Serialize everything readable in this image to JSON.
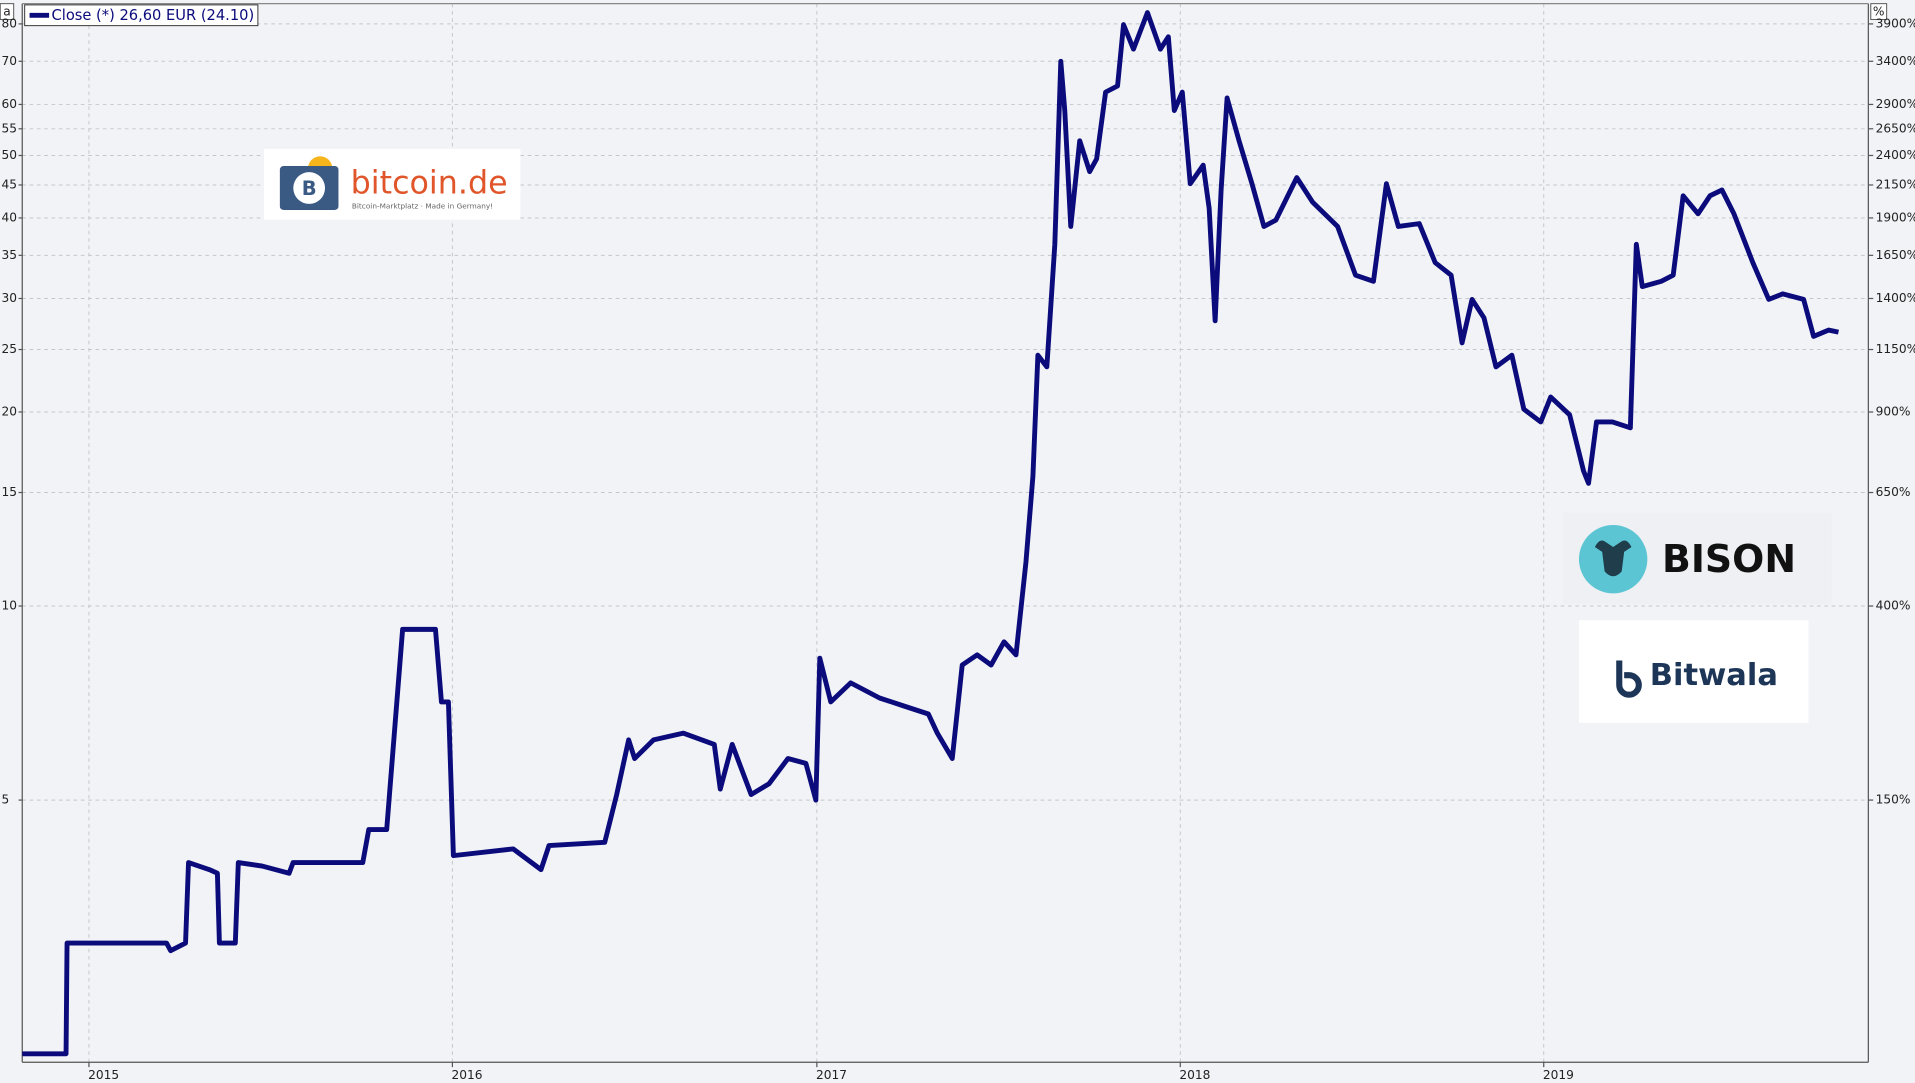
{
  "chart_data": {
    "type": "line",
    "ylabel": "a",
    "y2label": "%",
    "ylog": true,
    "grid": true,
    "ylim": [
      1.96,
      86
    ],
    "yticks": [
      5,
      10,
      15,
      20,
      25,
      30,
      35,
      40,
      45,
      50,
      55,
      60,
      70,
      80
    ],
    "y2lim": [
      -2,
      4200
    ],
    "y2ticks": [
      {
        "value": 150,
        "label": "150%"
      },
      {
        "value": 400,
        "label": "400%"
      },
      {
        "value": 650,
        "label": "650%"
      },
      {
        "value": 900,
        "label": "900%"
      },
      {
        "value": 1150,
        "label": "1150%"
      },
      {
        "value": 1400,
        "label": "1400%"
      },
      {
        "value": 1650,
        "label": "1650%"
      },
      {
        "value": 1900,
        "label": "1900%"
      },
      {
        "value": 2150,
        "label": "2150%"
      },
      {
        "value": 2400,
        "label": "2400%"
      },
      {
        "value": 2650,
        "label": "2650%"
      },
      {
        "value": 2900,
        "label": "2900%"
      },
      {
        "value": 3400,
        "label": "3400%"
      },
      {
        "value": 3900,
        "label": "3900%"
      }
    ],
    "xlim": [
      "2014-10-26",
      "2019-11-23"
    ],
    "xticks": [
      {
        "value": "2015-01-01",
        "label": "2015"
      },
      {
        "value": "2016-01-01",
        "label": "2016"
      },
      {
        "value": "2017-01-01",
        "label": "2017"
      },
      {
        "value": "2018-01-01",
        "label": "2018"
      },
      {
        "value": "2019-01-01",
        "label": "2019"
      }
    ],
    "x": [
      "2014-10-26",
      "2014-12-09",
      "2014-12-10",
      "2015-03-20",
      "2015-03-24",
      "2015-04-08",
      "2015-04-11",
      "2015-05-02",
      "2015-05-10",
      "2015-05-12",
      "2015-05-28",
      "2015-05-31",
      "2015-06-24",
      "2015-07-21",
      "2015-07-25",
      "2015-10-03",
      "2015-10-09",
      "2015-10-27",
      "2015-11-12",
      "2015-12-15",
      "2015-12-21",
      "2015-12-28",
      "2016-01-02",
      "2016-03-02",
      "2016-03-30",
      "2016-04-07",
      "2016-06-02",
      "2016-06-14",
      "2016-06-26",
      "2016-07-02",
      "2016-07-21",
      "2016-08-20",
      "2016-09-20",
      "2016-09-26",
      "2016-10-08",
      "2016-10-27",
      "2016-11-14",
      "2016-12-03",
      "2016-12-21",
      "2016-12-31",
      "2017-01-04",
      "2017-01-15",
      "2017-02-04",
      "2017-03-05",
      "2017-03-29",
      "2017-04-23",
      "2017-05-02",
      "2017-05-17",
      "2017-05-27",
      "2017-06-11",
      "2017-06-25",
      "2017-07-08",
      "2017-07-20",
      "2017-07-30",
      "2017-08-06",
      "2017-08-11",
      "2017-08-20",
      "2017-08-28",
      "2017-09-03",
      "2017-09-07",
      "2017-09-13",
      "2017-09-22",
      "2017-10-02",
      "2017-10-09",
      "2017-10-18",
      "2017-10-30",
      "2017-11-05",
      "2017-11-15",
      "2017-11-29",
      "2017-12-12",
      "2017-12-20",
      "2017-12-26",
      "2018-01-03",
      "2018-01-11",
      "2018-01-24",
      "2018-01-30",
      "2018-02-05",
      "2018-02-11",
      "2018-02-17",
      "2018-03-01",
      "2018-03-14",
      "2018-03-26",
      "2018-04-07",
      "2018-04-28",
      "2018-05-14",
      "2018-06-08",
      "2018-06-26",
      "2018-07-14",
      "2018-07-27",
      "2018-08-08",
      "2018-08-29",
      "2018-09-14",
      "2018-09-30",
      "2018-10-11",
      "2018-10-21",
      "2018-11-02",
      "2018-11-14",
      "2018-11-30",
      "2018-12-12",
      "2018-12-29",
      "2019-01-08",
      "2019-01-27",
      "2019-02-10",
      "2019-02-15",
      "2019-02-23",
      "2019-03-11",
      "2019-03-29",
      "2019-04-04",
      "2019-04-10",
      "2019-04-29",
      "2019-05-11",
      "2019-05-21",
      "2019-06-05",
      "2019-06-17",
      "2019-06-29",
      "2019-07-11",
      "2019-07-30",
      "2019-08-15",
      "2019-08-29",
      "2019-09-19",
      "2019-09-29",
      "2019-10-14",
      "2019-10-24"
    ],
    "series": [
      {
        "name": "Close (*) 26,60 EUR (24.10)",
        "color": "#0b0b7c",
        "values": [
          2.02,
          2.02,
          3.0,
          3.0,
          2.92,
          3.0,
          4.0,
          3.9,
          3.85,
          3.0,
          3.0,
          4.0,
          3.95,
          3.85,
          4.0,
          4.0,
          4.5,
          4.5,
          9.2,
          9.2,
          7.1,
          7.1,
          4.1,
          4.2,
          3.9,
          4.25,
          4.3,
          5.1,
          6.2,
          5.8,
          6.2,
          6.35,
          6.1,
          5.2,
          6.1,
          5.1,
          5.3,
          5.8,
          5.7,
          5.0,
          8.3,
          7.1,
          7.6,
          7.2,
          7.0,
          6.8,
          6.35,
          5.8,
          8.1,
          8.4,
          8.1,
          8.8,
          8.4,
          11.7,
          15.9,
          24.5,
          23.5,
          36.4,
          70,
          58.7,
          38.8,
          52.7,
          47.2,
          49.4,
          62.7,
          64.1,
          79.8,
          73.1,
          83.3,
          73.1,
          76.4,
          58.7,
          62.7,
          45.2,
          48.3,
          41.4,
          27.7,
          44.2,
          61.4,
          52.7,
          45.2,
          38.8,
          39.7,
          46.2,
          42.3,
          38.8,
          32.6,
          31.9,
          45.2,
          38.8,
          39.2,
          34.1,
          32.6,
          25.6,
          29.9,
          28.0,
          23.5,
          24.5,
          20.2,
          19.3,
          21.1,
          19.8,
          16.2,
          15.5,
          19.3,
          19.3,
          18.9,
          36.4,
          31.3,
          31.9,
          32.6,
          43.3,
          40.6,
          43.3,
          44.2,
          40.6,
          34.1,
          29.9,
          30.5,
          29.9,
          26.2,
          26.8,
          26.6
        ]
      }
    ]
  },
  "logos": {
    "bitcoin_de": "bitcoin.de",
    "bitcoin_de_tagline": "Bitcoin-Marktplatz · Made in Germany!",
    "bison": "BISON",
    "bitwala": "Bitwala"
  }
}
